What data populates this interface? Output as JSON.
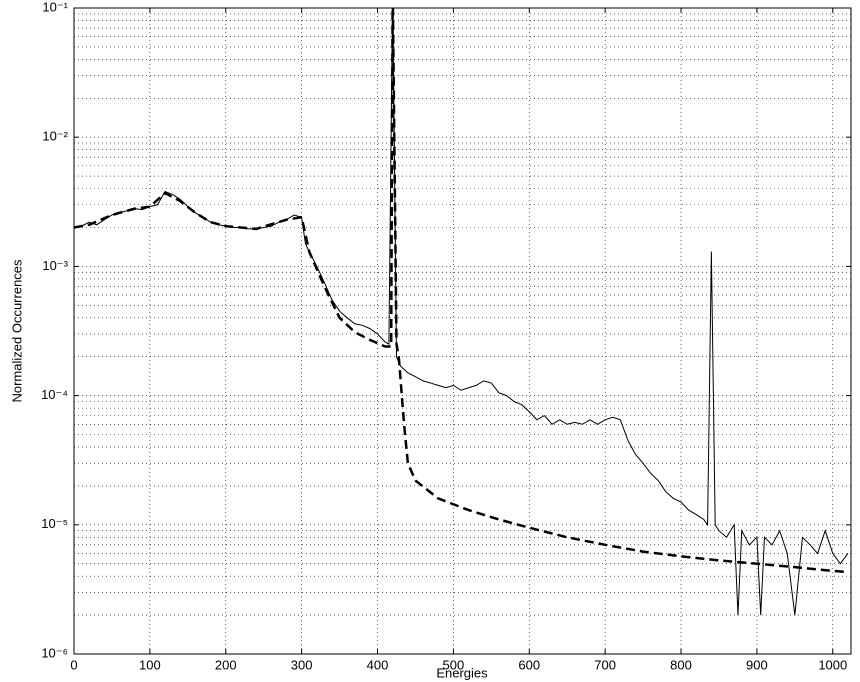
{
  "chart_data": {
    "type": "line",
    "xlabel": "Energies",
    "ylabel": "Normalized Occurrences",
    "xlim": [
      0,
      1024
    ],
    "ylim": [
      1e-06,
      0.1
    ],
    "ylog": true,
    "grid": true,
    "minor_grid": true,
    "xticks": [
      0,
      100,
      200,
      300,
      400,
      500,
      600,
      700,
      800,
      900,
      1000
    ],
    "yticks": [
      {
        "value": 1e-06,
        "label": "10⁻⁶"
      },
      {
        "value": 1e-05,
        "label": "10⁻⁵"
      },
      {
        "value": 0.0001,
        "label": "10⁻⁴"
      },
      {
        "value": 0.001,
        "label": "10⁻³"
      },
      {
        "value": 0.01,
        "label": "10⁻²"
      },
      {
        "value": 0.1,
        "label": "10⁻¹"
      }
    ],
    "series": [
      {
        "color": "#000000",
        "dash": false,
        "x": [
          0,
          10,
          20,
          30,
          40,
          50,
          60,
          70,
          80,
          90,
          100,
          110,
          120,
          130,
          140,
          150,
          160,
          170,
          180,
          190,
          200,
          210,
          220,
          230,
          240,
          250,
          260,
          270,
          280,
          290,
          300,
          305,
          310,
          320,
          330,
          340,
          350,
          360,
          370,
          380,
          390,
          400,
          410,
          415,
          420,
          425,
          430,
          440,
          450,
          460,
          470,
          480,
          490,
          500,
          510,
          520,
          530,
          540,
          550,
          560,
          570,
          580,
          590,
          600,
          610,
          620,
          630,
          640,
          650,
          660,
          670,
          680,
          690,
          700,
          710,
          720,
          730,
          740,
          750,
          760,
          770,
          780,
          790,
          800,
          810,
          820,
          830,
          835,
          840,
          845,
          850,
          860,
          870,
          875,
          880,
          890,
          900,
          905,
          910,
          920,
          930,
          940,
          950,
          960,
          970,
          980,
          990,
          1000,
          1010,
          1020
        ],
        "values": [
          0.002,
          0.00205,
          0.0022,
          0.0021,
          0.0023,
          0.0025,
          0.0026,
          0.0027,
          0.0028,
          0.00275,
          0.0029,
          0.003,
          0.0038,
          0.0036,
          0.0033,
          0.0029,
          0.0026,
          0.0024,
          0.0022,
          0.0021,
          0.00205,
          0.002,
          0.002,
          0.00195,
          0.00195,
          0.002,
          0.00205,
          0.0022,
          0.0023,
          0.0025,
          0.0024,
          0.0015,
          0.0013,
          0.001,
          0.00075,
          0.00055,
          0.00045,
          0.0004,
          0.00036,
          0.00035,
          0.00033,
          0.0003,
          0.00026,
          0.00025,
          0.15,
          0.0002,
          0.00017,
          0.00015,
          0.00014,
          0.00013,
          0.000125,
          0.00012,
          0.000115,
          0.00012,
          0.00011,
          0.000115,
          0.00012,
          0.00013,
          0.000125,
          0.000105,
          0.0001,
          9e-05,
          8.5e-05,
          7.5e-05,
          6.5e-05,
          7e-05,
          6e-05,
          6.5e-05,
          6e-05,
          6.2e-05,
          6e-05,
          6.5e-05,
          6e-05,
          6.5e-05,
          6.8e-05,
          6.5e-05,
          4.5e-05,
          3.5e-05,
          3e-05,
          2.5e-05,
          2.2e-05,
          1.8e-05,
          1.6e-05,
          1.5e-05,
          1.3e-05,
          1.2e-05,
          1.1e-05,
          1e-05,
          0.0013,
          1e-05,
          9e-06,
          8e-06,
          1e-05,
          2e-06,
          9e-06,
          7e-06,
          8e-06,
          2e-06,
          8e-06,
          7e-06,
          9e-06,
          6e-06,
          2e-06,
          8e-06,
          7e-06,
          6e-06,
          9e-06,
          6e-06,
          5e-06,
          6e-06
        ]
      },
      {
        "color": "#000000",
        "dash": true,
        "x": [
          0,
          20,
          50,
          80,
          100,
          120,
          140,
          160,
          180,
          200,
          240,
          280,
          300,
          310,
          330,
          350,
          370,
          390,
          410,
          418,
          420,
          425,
          428,
          435,
          440,
          450,
          480,
          520,
          560,
          600,
          650,
          700,
          750,
          800,
          850,
          900,
          950,
          1000,
          1020
        ],
        "values": [
          0.002,
          0.0021,
          0.0025,
          0.0028,
          0.0029,
          0.0037,
          0.0032,
          0.0026,
          0.0022,
          0.00205,
          0.00195,
          0.0023,
          0.0024,
          0.0013,
          0.0007,
          0.0004,
          0.00031,
          0.00027,
          0.00024,
          0.00024,
          0.15,
          0.00025,
          0.0002,
          6e-05,
          3e-05,
          2.2e-05,
          1.6e-05,
          1.3e-05,
          1.1e-05,
          9.5e-06,
          8e-06,
          7e-06,
          6.2e-06,
          5.7e-06,
          5.3e-06,
          5e-06,
          4.7e-06,
          4.4e-06,
          4.3e-06
        ]
      }
    ]
  }
}
